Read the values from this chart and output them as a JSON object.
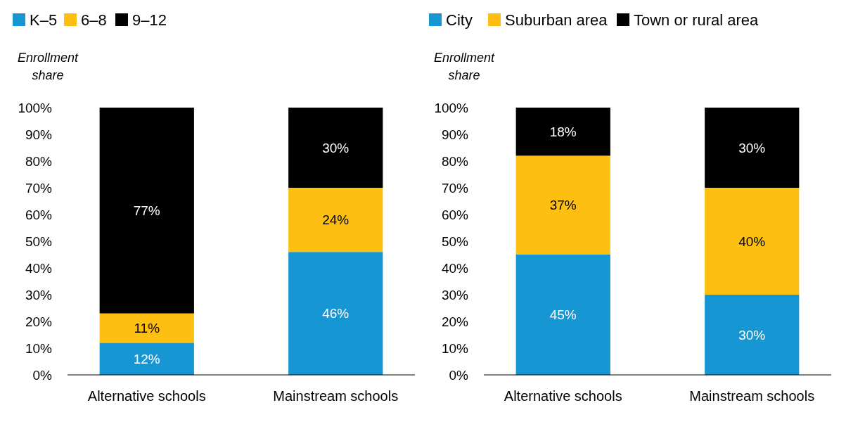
{
  "chart_data": [
    {
      "type": "bar",
      "stacked": true,
      "ylabel": "Enrollment share",
      "legend": "top left",
      "categories": [
        "Alternative schools",
        "Mainstream schools"
      ],
      "ylim": [
        0,
        100
      ],
      "yticks": [
        {
          "value": 0,
          "label": "0%"
        },
        {
          "value": 10,
          "label": "10%"
        },
        {
          "value": 20,
          "label": "20%"
        },
        {
          "value": 30,
          "label": "30%"
        },
        {
          "value": 40,
          "label": "40%"
        },
        {
          "value": 50,
          "label": "50%"
        },
        {
          "value": 60,
          "label": "60%"
        },
        {
          "value": 70,
          "label": "70%"
        },
        {
          "value": 80,
          "label": "80%"
        },
        {
          "value": 90,
          "label": "90%"
        },
        {
          "value": 100,
          "label": "100%"
        }
      ],
      "grid": false,
      "series": [
        {
          "name": "K–5",
          "color": "#1696d2",
          "values": [
            12,
            46
          ],
          "value_labels": [
            "12%",
            "46%"
          ]
        },
        {
          "name": "6–8",
          "color": "#fdbf11",
          "values": [
            11,
            24
          ],
          "value_labels": [
            "11%",
            "24%"
          ]
        },
        {
          "name": "9–12",
          "color": "#000000",
          "values": [
            77,
            30
          ],
          "value_labels": [
            "77%",
            "30%"
          ]
        }
      ]
    },
    {
      "type": "bar",
      "stacked": true,
      "ylabel": "Enrollment share",
      "legend": "top left",
      "categories": [
        "Alternative schools",
        "Mainstream schools"
      ],
      "ylim": [
        0,
        100
      ],
      "yticks": [
        {
          "value": 0,
          "label": "0%"
        },
        {
          "value": 10,
          "label": "10%"
        },
        {
          "value": 20,
          "label": "20%"
        },
        {
          "value": 30,
          "label": "30%"
        },
        {
          "value": 40,
          "label": "40%"
        },
        {
          "value": 50,
          "label": "50%"
        },
        {
          "value": 60,
          "label": "60%"
        },
        {
          "value": 70,
          "label": "70%"
        },
        {
          "value": 80,
          "label": "80%"
        },
        {
          "value": 90,
          "label": "90%"
        },
        {
          "value": 100,
          "label": "100%"
        }
      ],
      "grid": false,
      "series": [
        {
          "name": "City",
          "color": "#1696d2",
          "values": [
            45,
            30
          ],
          "value_labels": [
            "45%",
            "30%"
          ]
        },
        {
          "name": "Suburban area",
          "color": "#fdbf11",
          "values": [
            37,
            40
          ],
          "value_labels": [
            "37%",
            "40%"
          ]
        },
        {
          "name": "Town or rural area",
          "color": "#000000",
          "values": [
            18,
            30
          ],
          "value_labels": [
            "18%",
            "30%"
          ]
        }
      ]
    }
  ]
}
